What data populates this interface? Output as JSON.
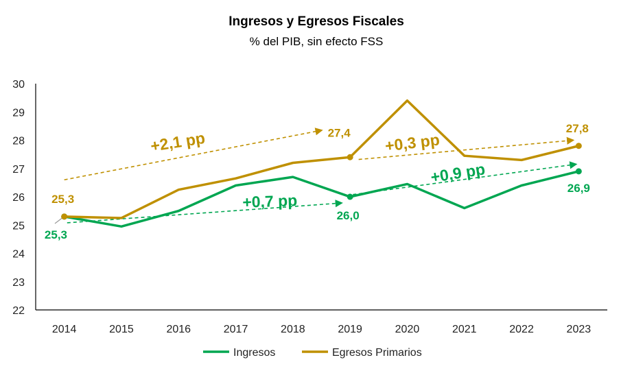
{
  "chart_data": {
    "type": "line",
    "title": "Ingresos y Egresos Fiscales",
    "subtitle": "% del PIB, sin efecto FSS",
    "categories": [
      "2014",
      "2015",
      "2016",
      "2017",
      "2018",
      "2019",
      "2020",
      "2021",
      "2022",
      "2023"
    ],
    "ylim": [
      22,
      30
    ],
    "yticks": [
      "22",
      "23",
      "24",
      "25",
      "26",
      "27",
      "28",
      "29",
      "30"
    ],
    "grid": false,
    "legend_position": "bottom",
    "series": [
      {
        "name": "Ingresos",
        "color": "#00a651",
        "values": [
          25.3,
          24.95,
          25.5,
          26.4,
          26.7,
          26.0,
          26.45,
          25.6,
          26.4,
          26.9
        ]
      },
      {
        "name": "Egresos Primarios",
        "color": "#bf9000",
        "values": [
          25.3,
          25.25,
          26.25,
          26.65,
          27.2,
          27.4,
          29.4,
          27.45,
          27.3,
          27.8
        ]
      }
    ],
    "data_labels": [
      {
        "series": 0,
        "index": 0,
        "text": "25,3"
      },
      {
        "series": 0,
        "index": 5,
        "text": "26,0"
      },
      {
        "series": 0,
        "index": 9,
        "text": "26,9"
      },
      {
        "series": 1,
        "index": 0,
        "text": "25,3"
      },
      {
        "series": 1,
        "index": 5,
        "text": "27,4"
      },
      {
        "series": 1,
        "index": 9,
        "text": "27,8"
      }
    ],
    "annotations": [
      {
        "text": "+2,1 pp",
        "series": 1
      },
      {
        "text": "+0,3 pp",
        "series": 1
      },
      {
        "text": "+0,7 pp",
        "series": 0
      },
      {
        "text": "+0,9 pp",
        "series": 0
      }
    ]
  }
}
